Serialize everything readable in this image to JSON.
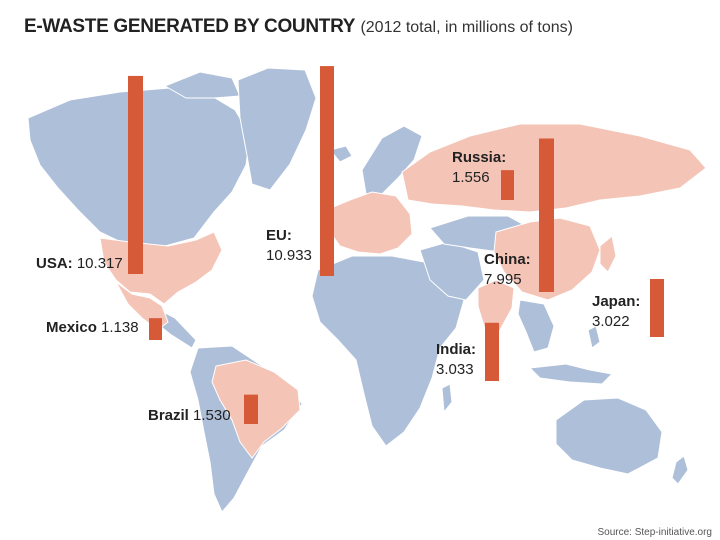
{
  "header": {
    "title": "E-WASTE GENERATED BY COUNTRY",
    "subtitle": "(2012 total, in millions of tons)"
  },
  "footer": {
    "source": "Source: Step-initiative.org"
  },
  "colors": {
    "bar": "#d65a37",
    "highlight_land": "#f4c4b7",
    "other_land": "#aebfd9",
    "ocean": "#ffffff"
  },
  "chart_data": {
    "type": "bar",
    "title": "E-WASTE GENERATED BY COUNTRY",
    "subtitle": "(2012 total, in millions of tons)",
    "unit": "millions of tons",
    "categories": [
      "USA",
      "Mexico",
      "Brazil",
      "EU",
      "Russia",
      "China",
      "India",
      "Japan"
    ],
    "values": [
      10.317,
      1.138,
      1.53,
      10.933,
      1.556,
      7.995,
      3.033,
      3.022
    ],
    "value_labels": [
      "10.317",
      "1.138",
      "1.530",
      "10.933",
      "1.556",
      "7.995",
      "3.033",
      "3.022"
    ],
    "source": "Source: Step-initiative.org"
  }
}
